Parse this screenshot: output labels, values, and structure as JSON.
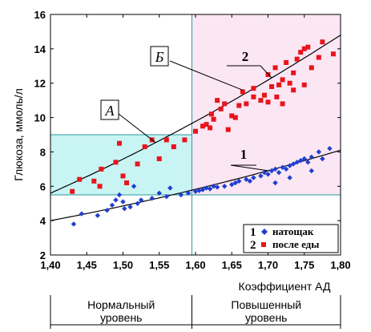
{
  "chart_data": {
    "type": "scatter",
    "xlabel": "Коэффициент АД",
    "ylabel": "Глюкоза, ммоль/л",
    "xlim": [
      1.4,
      1.8
    ],
    "ylim": [
      2,
      16
    ],
    "x_ticks": [
      "1,40",
      "1,45",
      "1,50",
      "1,55",
      "1,60",
      "1,65",
      "1,70",
      "1,75",
      "1,80"
    ],
    "y_ticks": [
      "2",
      "4",
      "6",
      "8",
      "10",
      "12",
      "14",
      "16"
    ],
    "threshold_x": 1.595,
    "regions": [
      {
        "name": "A",
        "label": "А",
        "x": [
          1.4,
          1.595
        ],
        "y": [
          5.5,
          9.0
        ],
        "color": "#c8f4f4"
      },
      {
        "name": "B",
        "label": "Б",
        "x": [
          1.595,
          1.8
        ],
        "y": [
          5.5,
          16
        ],
        "color": "#fbe6f4"
      }
    ],
    "series": [
      {
        "name": "натощак",
        "number": "1",
        "color": "#1f3fd0",
        "marker": "diamond",
        "points": [
          [
            1.432,
            3.8
          ],
          [
            1.443,
            4.4
          ],
          [
            1.465,
            4.3
          ],
          [
            1.478,
            4.6
          ],
          [
            1.485,
            4.9
          ],
          [
            1.49,
            5.2
          ],
          [
            1.495,
            5.5
          ],
          [
            1.5,
            5.1
          ],
          [
            1.502,
            4.7
          ],
          [
            1.51,
            4.8
          ],
          [
            1.515,
            6.0
          ],
          [
            1.52,
            5.0
          ],
          [
            1.525,
            5.2
          ],
          [
            1.54,
            5.3
          ],
          [
            1.55,
            5.6
          ],
          [
            1.56,
            5.4
          ],
          [
            1.565,
            5.9
          ],
          [
            1.58,
            5.5
          ],
          [
            1.59,
            5.6
          ],
          [
            1.6,
            5.7
          ],
          [
            1.605,
            5.75
          ],
          [
            1.61,
            5.8
          ],
          [
            1.615,
            5.9
          ],
          [
            1.62,
            5.85
          ],
          [
            1.625,
            6.0
          ],
          [
            1.63,
            5.95
          ],
          [
            1.64,
            6.0
          ],
          [
            1.65,
            6.1
          ],
          [
            1.655,
            6.2
          ],
          [
            1.66,
            6.3
          ],
          [
            1.67,
            6.4
          ],
          [
            1.675,
            6.3
          ],
          [
            1.68,
            6.5
          ],
          [
            1.69,
            6.6
          ],
          [
            1.695,
            6.8
          ],
          [
            1.7,
            6.7
          ],
          [
            1.705,
            6.9
          ],
          [
            1.71,
            7.0
          ],
          [
            1.715,
            6.8
          ],
          [
            1.72,
            7.1
          ],
          [
            1.725,
            7.0
          ],
          [
            1.73,
            7.2
          ],
          [
            1.735,
            7.3
          ],
          [
            1.74,
            7.4
          ],
          [
            1.745,
            7.5
          ],
          [
            1.75,
            7.6
          ],
          [
            1.755,
            7.4
          ],
          [
            1.76,
            7.7
          ],
          [
            1.77,
            8.0
          ],
          [
            1.775,
            7.6
          ],
          [
            1.785,
            8.2
          ],
          [
            1.71,
            6.2
          ],
          [
            1.73,
            6.5
          ],
          [
            1.76,
            6.9
          ]
        ],
        "fit": {
          "x0": 1.4,
          "y0": 4.0,
          "x1": 1.8,
          "y1": 8.1,
          "curvature": 0.9
        }
      },
      {
        "name": "после еды",
        "number": "2",
        "color": "#e8151b",
        "marker": "square",
        "points": [
          [
            1.43,
            5.7
          ],
          [
            1.44,
            6.4
          ],
          [
            1.46,
            6.3
          ],
          [
            1.468,
            6.0
          ],
          [
            1.47,
            7.0
          ],
          [
            1.49,
            7.4
          ],
          [
            1.495,
            8.5
          ],
          [
            1.5,
            6.6
          ],
          [
            1.505,
            6.2
          ],
          [
            1.52,
            7.3
          ],
          [
            1.53,
            8.3
          ],
          [
            1.54,
            8.7
          ],
          [
            1.55,
            7.6
          ],
          [
            1.56,
            8.7
          ],
          [
            1.57,
            8.3
          ],
          [
            1.585,
            8.7
          ],
          [
            1.6,
            9.2
          ],
          [
            1.61,
            9.5
          ],
          [
            1.615,
            9.6
          ],
          [
            1.62,
            9.4
          ],
          [
            1.622,
            10.2
          ],
          [
            1.625,
            9.9
          ],
          [
            1.63,
            11.0
          ],
          [
            1.635,
            10.5
          ],
          [
            1.64,
            10.8
          ],
          [
            1.645,
            9.3
          ],
          [
            1.65,
            10.1
          ],
          [
            1.655,
            10.0
          ],
          [
            1.66,
            10.7
          ],
          [
            1.665,
            11.5
          ],
          [
            1.67,
            10.8
          ],
          [
            1.68,
            11.7
          ],
          [
            1.69,
            11.0
          ],
          [
            1.695,
            11.3
          ],
          [
            1.7,
            12.5
          ],
          [
            1.705,
            11.8
          ],
          [
            1.71,
            12.9
          ],
          [
            1.712,
            11.2
          ],
          [
            1.715,
            11.9
          ],
          [
            1.72,
            12.2
          ],
          [
            1.725,
            13.2
          ],
          [
            1.73,
            12.0
          ],
          [
            1.735,
            12.6
          ],
          [
            1.74,
            13.4
          ],
          [
            1.745,
            13.8
          ],
          [
            1.75,
            14.0
          ],
          [
            1.755,
            14.1
          ],
          [
            1.76,
            12.9
          ],
          [
            1.77,
            13.5
          ],
          [
            1.775,
            14.4
          ],
          [
            1.79,
            13.7
          ],
          [
            1.72,
            10.8
          ],
          [
            1.735,
            11.6
          ],
          [
            1.75,
            11.9
          ],
          [
            1.68,
            11.2
          ],
          [
            1.7,
            10.9
          ]
        ],
        "fit": {
          "x0": 1.4,
          "y0": 5.6,
          "x1": 1.8,
          "y1": 14.8,
          "curvature": 1.7
        }
      }
    ],
    "annotations": [
      {
        "label": "1",
        "target_series": "натощак"
      },
      {
        "label": "2",
        "target_series": "после еды"
      },
      {
        "label": "А",
        "target_region": "A"
      },
      {
        "label": "Б",
        "target_region": "B"
      }
    ],
    "legend": {
      "position": "bottom-right",
      "entries": [
        {
          "number": "1",
          "text": "натощак"
        },
        {
          "number": "2",
          "text": "после еды"
        }
      ]
    },
    "zones": [
      {
        "line1": "Нормальный",
        "line2": "уровень"
      },
      {
        "line1": "Повышенный",
        "line2": "уровень"
      }
    ]
  }
}
